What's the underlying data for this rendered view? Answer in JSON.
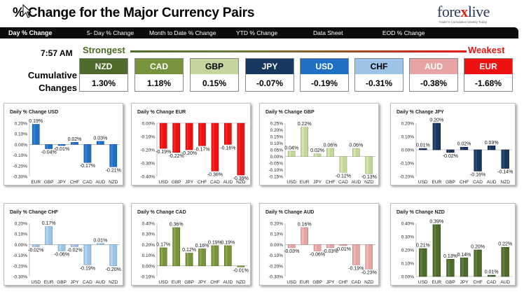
{
  "title": "% Change for the Major Currency Pairs",
  "logo": {
    "main": "forexlive",
    "tagline": "Trader's Cumulative Weekly Today"
  },
  "tabs": [
    {
      "label": "Day % Change",
      "active": true
    },
    {
      "label": "5- Day % Change",
      "active": false
    },
    {
      "label": "Month to Date % Change",
      "active": false
    },
    {
      "label": "YTD % Change",
      "active": false
    },
    {
      "label": "Data Sheet",
      "active": false
    },
    {
      "label": "EOD % Change",
      "active": false
    }
  ],
  "time": "7:57 AM",
  "strongest_label": "Strongest",
  "weakest_label": "Weakest",
  "cumulative_label_1": "Cumulative",
  "cumulative_label_2": "Changes",
  "currencies": [
    {
      "name": "NZD",
      "value": "1.30%",
      "color": "#4e6b2b"
    },
    {
      "name": "CAD",
      "value": "1.18%",
      "color": "#77933c"
    },
    {
      "name": "GBP",
      "value": "0.15%",
      "color": "#c3d69b",
      "text_color": "#000000"
    },
    {
      "name": "JPY",
      "value": "-0.07%",
      "color": "#17375e"
    },
    {
      "name": "USD",
      "value": "-0.19%",
      "color": "#1f6fc5"
    },
    {
      "name": "CHF",
      "value": "-0.31%",
      "color": "#9dc3e6",
      "text_color": "#000000"
    },
    {
      "name": "AUD",
      "value": "-0.38%",
      "color": "#e6a4a4"
    },
    {
      "name": "EUR",
      "value": "-1.68%",
      "color": "#ee1111"
    }
  ],
  "chart_data": [
    {
      "type": "bar",
      "title": "Daily % Change USD",
      "categories": [
        "EUR",
        "GBP",
        "JPY",
        "CHF",
        "CAD",
        "AUD",
        "NZD"
      ],
      "values": [
        0.19,
        -0.04,
        -0.01,
        0.02,
        -0.17,
        0.03,
        -0.21
      ],
      "labels": [
        "0.19%",
        "-0.04%",
        "-0.01%",
        "0.02%",
        "-0.17%",
        "0.03%",
        "-0.21%"
      ],
      "ylim": [
        -0.3,
        0.2
      ],
      "ticks": [
        "0.20%",
        "0.10%",
        "0.00%",
        "-0.10%",
        "-0.20%",
        "-0.30%"
      ],
      "color": "#1f6fc5"
    },
    {
      "type": "bar",
      "title": "Daily % Change EUR",
      "categories": [
        "USD",
        "GBP",
        "JPY",
        "CHF",
        "CAD",
        "AUD",
        "NZD"
      ],
      "values": [
        -0.19,
        -0.22,
        -0.2,
        -0.17,
        -0.36,
        -0.16,
        -0.39
      ],
      "labels": [
        "-0.19%",
        "-0.22%",
        "-0.20%",
        "-0.17%",
        "-0.36%",
        "-0.16%",
        "-0.39%"
      ],
      "ylim": [
        -0.4,
        0.0
      ],
      "ticks": [
        "0.00%",
        "-0.10%",
        "-0.20%",
        "-0.30%",
        "-0.40%"
      ],
      "color": "#ee1111"
    },
    {
      "type": "bar",
      "title": "Daily % Change GBP",
      "categories": [
        "USD",
        "EUR",
        "JPY",
        "CHF",
        "CAD",
        "AUD",
        "NZD"
      ],
      "values": [
        0.04,
        0.22,
        0.02,
        0.06,
        -0.12,
        0.06,
        -0.13
      ],
      "labels": [
        "0.04%",
        "0.22%",
        "0.02%",
        "0.06%",
        "-0.12%",
        "0.06%",
        "-0.13%"
      ],
      "ylim": [
        -0.15,
        0.25
      ],
      "ticks": [
        "0.25%",
        "0.20%",
        "0.15%",
        "0.10%",
        "0.05%",
        "0.00%",
        "-0.05%",
        "-0.10%",
        "-0.15%"
      ],
      "color": "#c3d69b"
    },
    {
      "type": "bar",
      "title": "Daily % Change JPY",
      "categories": [
        "USD",
        "EUR",
        "GBP",
        "CHF",
        "CAD",
        "AUD",
        "NZD"
      ],
      "values": [
        0.01,
        0.2,
        -0.02,
        0.02,
        -0.16,
        0.03,
        -0.14
      ],
      "labels": [
        "0.01%",
        "0.20%",
        "-0.02%",
        "0.02%",
        "-0.16%",
        "0.03%",
        "-0.14%"
      ],
      "ylim": [
        -0.2,
        0.2
      ],
      "ticks": [
        "0.20%",
        "0.10%",
        "0.00%",
        "-0.10%",
        "-0.20%"
      ],
      "color": "#17375e"
    },
    {
      "type": "bar",
      "title": "Daily % Change CHF",
      "categories": [
        "USD",
        "EUR",
        "GBP",
        "JPY",
        "CAD",
        "AUD",
        "NZD"
      ],
      "values": [
        -0.02,
        0.17,
        -0.06,
        -0.02,
        -0.19,
        0.01,
        -0.2
      ],
      "labels": [
        "-0.02%",
        "0.17%",
        "-0.06%",
        "-0.02%",
        "-0.19%",
        "0.01%",
        "-0.20%"
      ],
      "ylim": [
        -0.3,
        0.2
      ],
      "ticks": [
        "0.20%",
        "0.10%",
        "0.00%",
        "-0.10%",
        "-0.20%",
        "-0.30%"
      ],
      "color": "#9dc3e6"
    },
    {
      "type": "bar",
      "title": "Daily % Change CAD",
      "categories": [
        "USD",
        "EUR",
        "GBP",
        "JPY",
        "CHF",
        "AUD",
        "NZD"
      ],
      "values": [
        0.17,
        0.36,
        0.12,
        0.16,
        0.19,
        0.19,
        -0.01
      ],
      "labels": [
        "0.17%",
        "0.36%",
        "0.12%",
        "0.16%",
        "0.19%",
        "0.19%",
        "-0.01%"
      ],
      "ylim": [
        -0.1,
        0.4
      ],
      "ticks": [
        "0.40%",
        "0.30%",
        "0.20%",
        "0.10%",
        "0.00%",
        "-0.10%"
      ],
      "color": "#77933c"
    },
    {
      "type": "bar",
      "title": "Daily % Change AUD",
      "categories": [
        "USD",
        "EUR",
        "GBP",
        "JPY",
        "CHF",
        "CAD",
        "NZD"
      ],
      "values": [
        -0.03,
        0.16,
        -0.06,
        -0.03,
        -0.01,
        -0.19,
        -0.23
      ],
      "labels": [
        "-0.03%",
        "0.16%",
        "-0.06%",
        "-0.03%",
        "-0.01%",
        "-0.19%",
        "-0.23%"
      ],
      "ylim": [
        -0.3,
        0.2
      ],
      "ticks": [
        "0.20%",
        "0.10%",
        "0.00%",
        "-0.10%",
        "-0.20%",
        "-0.30%"
      ],
      "color": "#e6a4a4"
    },
    {
      "type": "bar",
      "title": "Daily % Change NZD",
      "categories": [
        "USD",
        "EUR",
        "GBP",
        "JPY",
        "CHF",
        "CAD",
        "AUD"
      ],
      "values": [
        0.21,
        0.39,
        0.13,
        0.14,
        0.2,
        0.01,
        0.22
      ],
      "labels": [
        "0.21%",
        "0.39%",
        "0.13%",
        "0.14%",
        "0.20%",
        "0.01%",
        "0.22%"
      ],
      "ylim": [
        0.0,
        0.4
      ],
      "ticks": [
        "0.40%",
        "0.30%",
        "0.20%",
        "0.10%",
        "0.00%"
      ],
      "color": "#4e6b2b"
    }
  ]
}
